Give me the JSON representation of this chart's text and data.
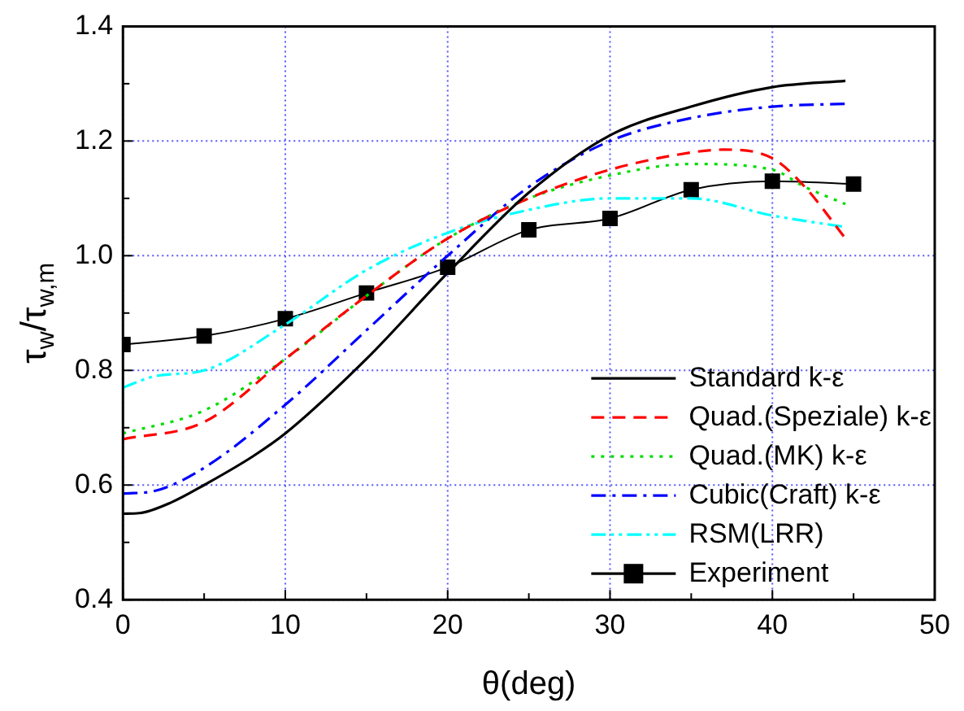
{
  "chart_data": {
    "type": "line",
    "xlabel": "θ(deg)",
    "ylabel": "τ$_{w}$/τ$_{w,m}$",
    "xlim": [
      0,
      50
    ],
    "xticks": [
      0,
      10,
      20,
      30,
      40,
      50
    ],
    "ylim": [
      0.4,
      1.4
    ],
    "yticks": [
      0.4,
      0.6,
      0.8,
      {
        "value": 1,
        "label": "1.0"
      },
      1.2,
      1.4
    ],
    "grid": true,
    "legend": "bottom right",
    "series": [
      {
        "name": "Standard k-ε",
        "color": "#000000",
        "line_style": "solid",
        "marker": "none",
        "x": [
          0,
          1,
          3,
          5,
          8,
          10,
          15,
          20,
          25,
          30,
          35,
          40,
          44.5
        ],
        "values": [
          0.55,
          0.551,
          0.57,
          0.6,
          0.65,
          0.69,
          0.82,
          0.97,
          1.11,
          1.21,
          1.26,
          1.294,
          1.305
        ]
      },
      {
        "name": "Quad.(Speziale) k-ε",
        "color": "#ff0000",
        "line_style": "dashed",
        "marker": "none",
        "x": [
          0,
          5,
          10,
          15,
          20,
          25,
          30,
          35,
          37,
          40,
          42,
          44.5
        ],
        "values": [
          0.68,
          0.71,
          0.82,
          0.93,
          1.03,
          1.1,
          1.15,
          1.18,
          1.185,
          1.17,
          1.12,
          1.03
        ]
      },
      {
        "name": "Quad.(MK) k-ε",
        "color": "#00dd00",
        "line_style": "dotted",
        "marker": "none",
        "x": [
          0,
          5,
          10,
          15,
          20,
          25,
          30,
          35,
          40,
          42,
          44.5
        ],
        "values": [
          0.69,
          0.73,
          0.82,
          0.93,
          1.03,
          1.1,
          1.14,
          1.16,
          1.15,
          1.12,
          1.09
        ]
      },
      {
        "name": "Cubic(Craft) k-ε",
        "color": "#0000ff",
        "line_style": "dashdot",
        "marker": "none",
        "x": [
          0,
          2,
          5,
          10,
          15,
          20,
          25,
          30,
          35,
          40,
          44.5
        ],
        "values": [
          0.585,
          0.59,
          0.63,
          0.74,
          0.87,
          1.0,
          1.12,
          1.2,
          1.24,
          1.26,
          1.265
        ]
      },
      {
        "name": "RSM(LRR)",
        "color": "#00ffff",
        "line_style": "dashdotdot",
        "marker": "none",
        "x": [
          0,
          2,
          5,
          10,
          15,
          20,
          25,
          30,
          35,
          40,
          44.5
        ],
        "values": [
          0.77,
          0.79,
          0.8,
          0.88,
          0.975,
          1.04,
          1.08,
          1.1,
          1.1,
          1.07,
          1.05
        ]
      },
      {
        "name": "Experiment",
        "color": "#000000",
        "line_style": "solid",
        "marker": "square",
        "x": [
          0,
          5,
          10,
          15,
          20,
          25,
          30,
          35,
          40,
          45
        ],
        "values": [
          0.845,
          0.86,
          0.89,
          0.935,
          0.98,
          1.045,
          1.065,
          1.115,
          1.13,
          1.125
        ]
      }
    ]
  }
}
